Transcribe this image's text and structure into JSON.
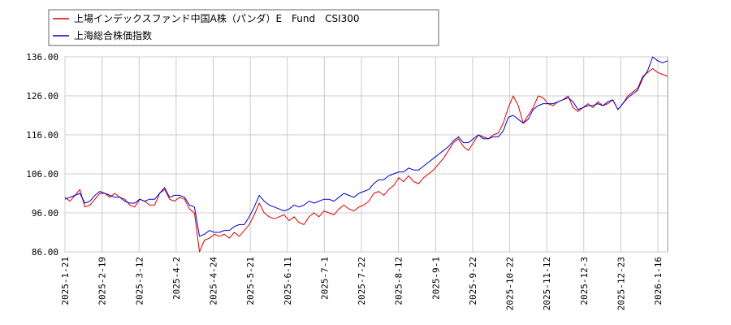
{
  "chart_data": {
    "type": "line",
    "legend": {
      "placement": "top-left"
    },
    "ylim": [
      86,
      136
    ],
    "yticks": [
      "136.00",
      "126.00",
      "116.00",
      "106.00",
      "96.00",
      "86.00"
    ],
    "xticks": [
      "2025-1-21",
      "2025-2-19",
      "2025-3-12",
      "2025-4-2",
      "2025-4-24",
      "2025-5-21",
      "2025-6-11",
      "2025-7-1",
      "2025-7-22",
      "2025-8-12",
      "2025-9-1",
      "2025-9-22",
      "2025-10-22",
      "2025-11-12",
      "2025-12-3",
      "2025-12-23",
      "2026-1-16"
    ],
    "grid": true,
    "series": [
      {
        "name": "上場インデックスファンド中国A株（パンダ）E　Fund　CSI300",
        "color": "#dd0000",
        "values": [
          [
            0,
            100.0
          ],
          [
            1,
            99.0
          ],
          [
            2,
            100.5
          ],
          [
            3,
            102.0
          ],
          [
            4,
            97.5
          ],
          [
            5,
            98.0
          ],
          [
            6,
            99.5
          ],
          [
            7,
            101.0
          ],
          [
            8,
            101.0
          ],
          [
            9,
            100.0
          ],
          [
            10,
            101.0
          ],
          [
            11,
            100.0
          ],
          [
            12,
            99.5
          ],
          [
            13,
            98.0
          ],
          [
            14,
            97.5
          ],
          [
            15,
            99.5
          ],
          [
            16,
            99.0
          ],
          [
            17,
            98.0
          ],
          [
            18,
            98.0
          ],
          [
            19,
            101.0
          ],
          [
            20,
            102.0
          ],
          [
            21,
            99.5
          ],
          [
            22,
            99.0
          ],
          [
            23,
            100.0
          ],
          [
            24,
            99.5
          ],
          [
            25,
            97.0
          ],
          [
            26,
            96.0
          ],
          [
            27,
            86.0
          ],
          [
            28,
            89.0
          ],
          [
            29,
            89.5
          ],
          [
            30,
            90.5
          ],
          [
            31,
            90.0
          ],
          [
            32,
            90.5
          ],
          [
            33,
            89.5
          ],
          [
            34,
            91.0
          ],
          [
            35,
            90.0
          ],
          [
            36,
            91.5
          ],
          [
            37,
            93.0
          ],
          [
            38,
            95.5
          ],
          [
            39,
            98.5
          ],
          [
            40,
            96.0
          ],
          [
            41,
            95.0
          ],
          [
            42,
            94.5
          ],
          [
            43,
            95.0
          ],
          [
            44,
            95.5
          ],
          [
            45,
            94.0
          ],
          [
            46,
            95.0
          ],
          [
            47,
            93.5
          ],
          [
            48,
            93.0
          ],
          [
            49,
            95.0
          ],
          [
            50,
            96.0
          ],
          [
            51,
            95.0
          ],
          [
            52,
            96.5
          ],
          [
            53,
            96.0
          ],
          [
            54,
            95.5
          ],
          [
            55,
            97.0
          ],
          [
            56,
            98.0
          ],
          [
            57,
            97.0
          ],
          [
            58,
            96.5
          ],
          [
            59,
            97.5
          ],
          [
            60,
            98.0
          ],
          [
            61,
            99.0
          ],
          [
            62,
            101.0
          ],
          [
            63,
            101.5
          ],
          [
            64,
            100.5
          ],
          [
            65,
            102.0
          ],
          [
            66,
            103.0
          ],
          [
            67,
            105.0
          ],
          [
            68,
            104.0
          ],
          [
            69,
            105.5
          ],
          [
            70,
            104.0
          ],
          [
            71,
            103.5
          ],
          [
            72,
            105.0
          ],
          [
            73,
            106.0
          ],
          [
            74,
            107.0
          ],
          [
            75,
            108.5
          ],
          [
            76,
            110.0
          ],
          [
            77,
            112.0
          ],
          [
            78,
            114.0
          ],
          [
            79,
            115.0
          ],
          [
            80,
            113.0
          ],
          [
            81,
            112.0
          ],
          [
            82,
            114.0
          ],
          [
            83,
            116.0
          ],
          [
            84,
            115.5
          ],
          [
            85,
            115.0
          ],
          [
            86,
            116.0
          ],
          [
            87,
            116.5
          ],
          [
            88,
            119.0
          ],
          [
            89,
            123.0
          ],
          [
            90,
            126.0
          ],
          [
            91,
            123.5
          ],
          [
            92,
            119.0
          ],
          [
            93,
            121.0
          ],
          [
            94,
            123.0
          ],
          [
            95,
            126.0
          ],
          [
            96,
            125.5
          ],
          [
            97,
            124.0
          ],
          [
            98,
            123.5
          ],
          [
            99,
            124.5
          ],
          [
            100,
            125.0
          ],
          [
            101,
            126.0
          ],
          [
            102,
            123.0
          ],
          [
            103,
            122.0
          ],
          [
            104,
            123.0
          ],
          [
            105,
            124.0
          ],
          [
            106,
            123.0
          ],
          [
            107,
            124.5
          ],
          [
            108,
            123.5
          ],
          [
            109,
            124.0
          ],
          [
            110,
            125.0
          ],
          [
            111,
            122.5
          ],
          [
            112,
            124.0
          ],
          [
            113,
            126.0
          ],
          [
            114,
            127.0
          ],
          [
            115,
            128.0
          ],
          [
            116,
            131.0
          ],
          [
            117,
            132.0
          ],
          [
            118,
            133.0
          ],
          [
            119,
            132.0
          ],
          [
            120,
            131.5
          ],
          [
            121,
            131.0
          ]
        ]
      },
      {
        "name": "上海総合株価指数",
        "color": "#0000cc",
        "values": [
          [
            0,
            99.5
          ],
          [
            1,
            100.0
          ],
          [
            2,
            100.5
          ],
          [
            3,
            101.0
          ],
          [
            4,
            98.5
          ],
          [
            5,
            99.0
          ],
          [
            6,
            100.5
          ],
          [
            7,
            101.5
          ],
          [
            8,
            101.0
          ],
          [
            9,
            100.5
          ],
          [
            10,
            100.0
          ],
          [
            11,
            100.0
          ],
          [
            12,
            99.0
          ],
          [
            13,
            98.5
          ],
          [
            14,
            98.5
          ],
          [
            15,
            99.5
          ],
          [
            16,
            99.0
          ],
          [
            17,
            99.5
          ],
          [
            18,
            99.5
          ],
          [
            19,
            101.0
          ],
          [
            20,
            102.5
          ],
          [
            21,
            100.0
          ],
          [
            22,
            100.5
          ],
          [
            23,
            100.5
          ],
          [
            24,
            100.0
          ],
          [
            25,
            98.0
          ],
          [
            26,
            97.5
          ],
          [
            27,
            90.0
          ],
          [
            28,
            90.5
          ],
          [
            29,
            91.5
          ],
          [
            30,
            91.0
          ],
          [
            31,
            91.0
          ],
          [
            32,
            91.5
          ],
          [
            33,
            91.5
          ],
          [
            34,
            92.5
          ],
          [
            35,
            93.0
          ],
          [
            36,
            93.0
          ],
          [
            37,
            95.0
          ],
          [
            38,
            97.5
          ],
          [
            39,
            100.5
          ],
          [
            40,
            99.0
          ],
          [
            41,
            98.0
          ],
          [
            42,
            97.5
          ],
          [
            43,
            97.0
          ],
          [
            44,
            96.5
          ],
          [
            45,
            97.0
          ],
          [
            46,
            98.0
          ],
          [
            47,
            97.5
          ],
          [
            48,
            98.0
          ],
          [
            49,
            99.0
          ],
          [
            50,
            98.5
          ],
          [
            51,
            99.0
          ],
          [
            52,
            99.5
          ],
          [
            53,
            99.5
          ],
          [
            54,
            99.0
          ],
          [
            55,
            100.0
          ],
          [
            56,
            101.0
          ],
          [
            57,
            100.5
          ],
          [
            58,
            100.0
          ],
          [
            59,
            101.0
          ],
          [
            60,
            101.5
          ],
          [
            61,
            102.0
          ],
          [
            62,
            103.5
          ],
          [
            63,
            104.5
          ],
          [
            64,
            104.5
          ],
          [
            65,
            105.5
          ],
          [
            66,
            106.0
          ],
          [
            67,
            106.5
          ],
          [
            68,
            106.5
          ],
          [
            69,
            107.5
          ],
          [
            70,
            107.0
          ],
          [
            71,
            107.0
          ],
          [
            72,
            108.0
          ],
          [
            73,
            109.0
          ],
          [
            74,
            110.0
          ],
          [
            75,
            111.0
          ],
          [
            76,
            112.0
          ],
          [
            77,
            113.0
          ],
          [
            78,
            114.5
          ],
          [
            79,
            115.5
          ],
          [
            80,
            114.0
          ],
          [
            81,
            114.0
          ],
          [
            82,
            115.0
          ],
          [
            83,
            116.0
          ],
          [
            84,
            115.0
          ],
          [
            85,
            115.0
          ],
          [
            86,
            115.5
          ],
          [
            87,
            115.5
          ],
          [
            88,
            117.0
          ],
          [
            89,
            120.5
          ],
          [
            90,
            121.0
          ],
          [
            91,
            120.0
          ],
          [
            92,
            119.0
          ],
          [
            93,
            120.0
          ],
          [
            94,
            122.5
          ],
          [
            95,
            123.5
          ],
          [
            96,
            124.0
          ],
          [
            97,
            124.0
          ],
          [
            98,
            124.0
          ],
          [
            99,
            124.5
          ],
          [
            100,
            125.0
          ],
          [
            101,
            125.5
          ],
          [
            102,
            124.5
          ],
          [
            103,
            122.5
          ],
          [
            104,
            123.0
          ],
          [
            105,
            123.5
          ],
          [
            106,
            123.5
          ],
          [
            107,
            124.0
          ],
          [
            108,
            123.5
          ],
          [
            109,
            124.5
          ],
          [
            110,
            125.0
          ],
          [
            111,
            122.5
          ],
          [
            112,
            124.0
          ],
          [
            113,
            125.5
          ],
          [
            114,
            126.5
          ],
          [
            115,
            127.5
          ],
          [
            116,
            130.5
          ],
          [
            117,
            132.5
          ],
          [
            118,
            136.0
          ],
          [
            119,
            135.0
          ],
          [
            120,
            134.5
          ],
          [
            121,
            135.0
          ]
        ]
      }
    ]
  }
}
